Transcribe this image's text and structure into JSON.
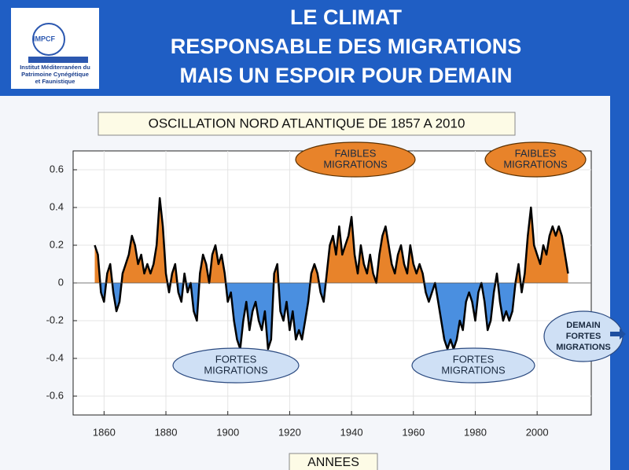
{
  "header": {
    "title": [
      "LE CLIMAT",
      "RESPONSABLE DES MIGRATIONS",
      "MAIS UN ESPOIR POUR DEMAIN"
    ],
    "logo": {
      "acronym": "IMPCF",
      "name": [
        "Institut Méditerranéen du",
        "Patrimoine Cynégétique",
        "et Faunistique"
      ]
    }
  },
  "chart_data": {
    "type": "line",
    "title": "OSCILLATION NORD ATLANTIQUE DE 1857 A 2010",
    "xlabel": "ANNEES",
    "x": [
      1857,
      1858,
      1859,
      1860,
      1861,
      1862,
      1863,
      1864,
      1865,
      1866,
      1867,
      1868,
      1869,
      1870,
      1871,
      1872,
      1873,
      1874,
      1875,
      1876,
      1877,
      1878,
      1879,
      1880,
      1881,
      1882,
      1883,
      1884,
      1885,
      1886,
      1887,
      1888,
      1889,
      1890,
      1891,
      1892,
      1893,
      1894,
      1895,
      1896,
      1897,
      1898,
      1899,
      1900,
      1901,
      1902,
      1903,
      1904,
      1905,
      1906,
      1907,
      1908,
      1909,
      1910,
      1911,
      1912,
      1913,
      1914,
      1915,
      1916,
      1917,
      1918,
      1919,
      1920,
      1921,
      1922,
      1923,
      1924,
      1925,
      1926,
      1927,
      1928,
      1929,
      1930,
      1931,
      1932,
      1933,
      1934,
      1935,
      1936,
      1937,
      1938,
      1939,
      1940,
      1941,
      1942,
      1943,
      1944,
      1945,
      1946,
      1947,
      1948,
      1949,
      1950,
      1951,
      1952,
      1953,
      1954,
      1955,
      1956,
      1957,
      1958,
      1959,
      1960,
      1961,
      1962,
      1963,
      1964,
      1965,
      1966,
      1967,
      1968,
      1969,
      1970,
      1971,
      1972,
      1973,
      1974,
      1975,
      1976,
      1977,
      1978,
      1979,
      1980,
      1981,
      1982,
      1983,
      1984,
      1985,
      1986,
      1987,
      1988,
      1989,
      1990,
      1991,
      1992,
      1993,
      1994,
      1995,
      1996,
      1997,
      1998,
      1999,
      2000,
      2001,
      2002,
      2003,
      2004,
      2005,
      2006,
      2007,
      2008,
      2009,
      2010
    ],
    "series": [
      {
        "color": "#000000",
        "pos_color": "#e8832a",
        "neg_color": "#4a8fe0",
        "values": [
          0.2,
          0.15,
          -0.05,
          -0.1,
          0.05,
          0.1,
          -0.05,
          -0.15,
          -0.1,
          0.05,
          0.1,
          0.15,
          0.25,
          0.2,
          0.1,
          0.15,
          0.05,
          0.1,
          0.05,
          0.1,
          0.2,
          0.45,
          0.3,
          0.05,
          -0.05,
          0.05,
          0.1,
          -0.05,
          -0.1,
          0.05,
          -0.05,
          0.0,
          -0.15,
          -0.2,
          0.05,
          0.15,
          0.1,
          0.0,
          0.15,
          0.2,
          0.1,
          0.15,
          0.05,
          -0.1,
          -0.05,
          -0.2,
          -0.3,
          -0.35,
          -0.2,
          -0.1,
          -0.25,
          -0.15,
          -0.1,
          -0.2,
          -0.25,
          -0.15,
          -0.35,
          -0.3,
          0.05,
          0.1,
          -0.15,
          -0.2,
          -0.1,
          -0.25,
          -0.15,
          -0.3,
          -0.25,
          -0.3,
          -0.2,
          -0.1,
          0.05,
          0.1,
          0.05,
          -0.05,
          -0.1,
          0.05,
          0.2,
          0.25,
          0.15,
          0.3,
          0.15,
          0.2,
          0.25,
          0.35,
          0.15,
          0.05,
          0.2,
          0.1,
          0.05,
          0.15,
          0.05,
          0.0,
          0.15,
          0.25,
          0.3,
          0.2,
          0.1,
          0.05,
          0.15,
          0.2,
          0.1,
          0.05,
          0.2,
          0.1,
          0.05,
          0.1,
          0.05,
          -0.05,
          -0.1,
          -0.05,
          0.0,
          -0.1,
          -0.2,
          -0.3,
          -0.35,
          -0.3,
          -0.35,
          -0.3,
          -0.2,
          -0.25,
          -0.1,
          -0.05,
          -0.1,
          -0.2,
          -0.05,
          0.0,
          -0.1,
          -0.25,
          -0.2,
          -0.05,
          0.05,
          -0.1,
          -0.2,
          -0.15,
          -0.2,
          -0.15,
          0.0,
          0.1,
          -0.05,
          0.05,
          0.25,
          0.4,
          0.2,
          0.15,
          0.1,
          0.2,
          0.15,
          0.25,
          0.3,
          0.25,
          0.3,
          0.25,
          0.15,
          0.05
        ]
      }
    ],
    "xlim": [
      1850,
      2017.5
    ],
    "xticks": [
      1860,
      1880,
      1900,
      1920,
      1940,
      1960,
      1980,
      2000
    ],
    "ylim": [
      -0.7,
      0.7
    ],
    "yticks": [
      0.6,
      0.4,
      0.2,
      0,
      -0.2,
      -0.4,
      -0.6
    ],
    "grid": true,
    "annotations": [
      {
        "lines": [
          "FAIBLES",
          "MIGRATIONS"
        ]
      },
      {
        "lines": [
          "FAIBLES",
          "MIGRATIONS"
        ]
      },
      {
        "lines": [
          "FORTES",
          "MIGRATIONS"
        ]
      },
      {
        "lines": [
          "FORTES",
          "MIGRATIONS"
        ]
      },
      {
        "lines": [
          "DEMAIN",
          "FORTES",
          "MIGRATIONS"
        ]
      }
    ]
  }
}
